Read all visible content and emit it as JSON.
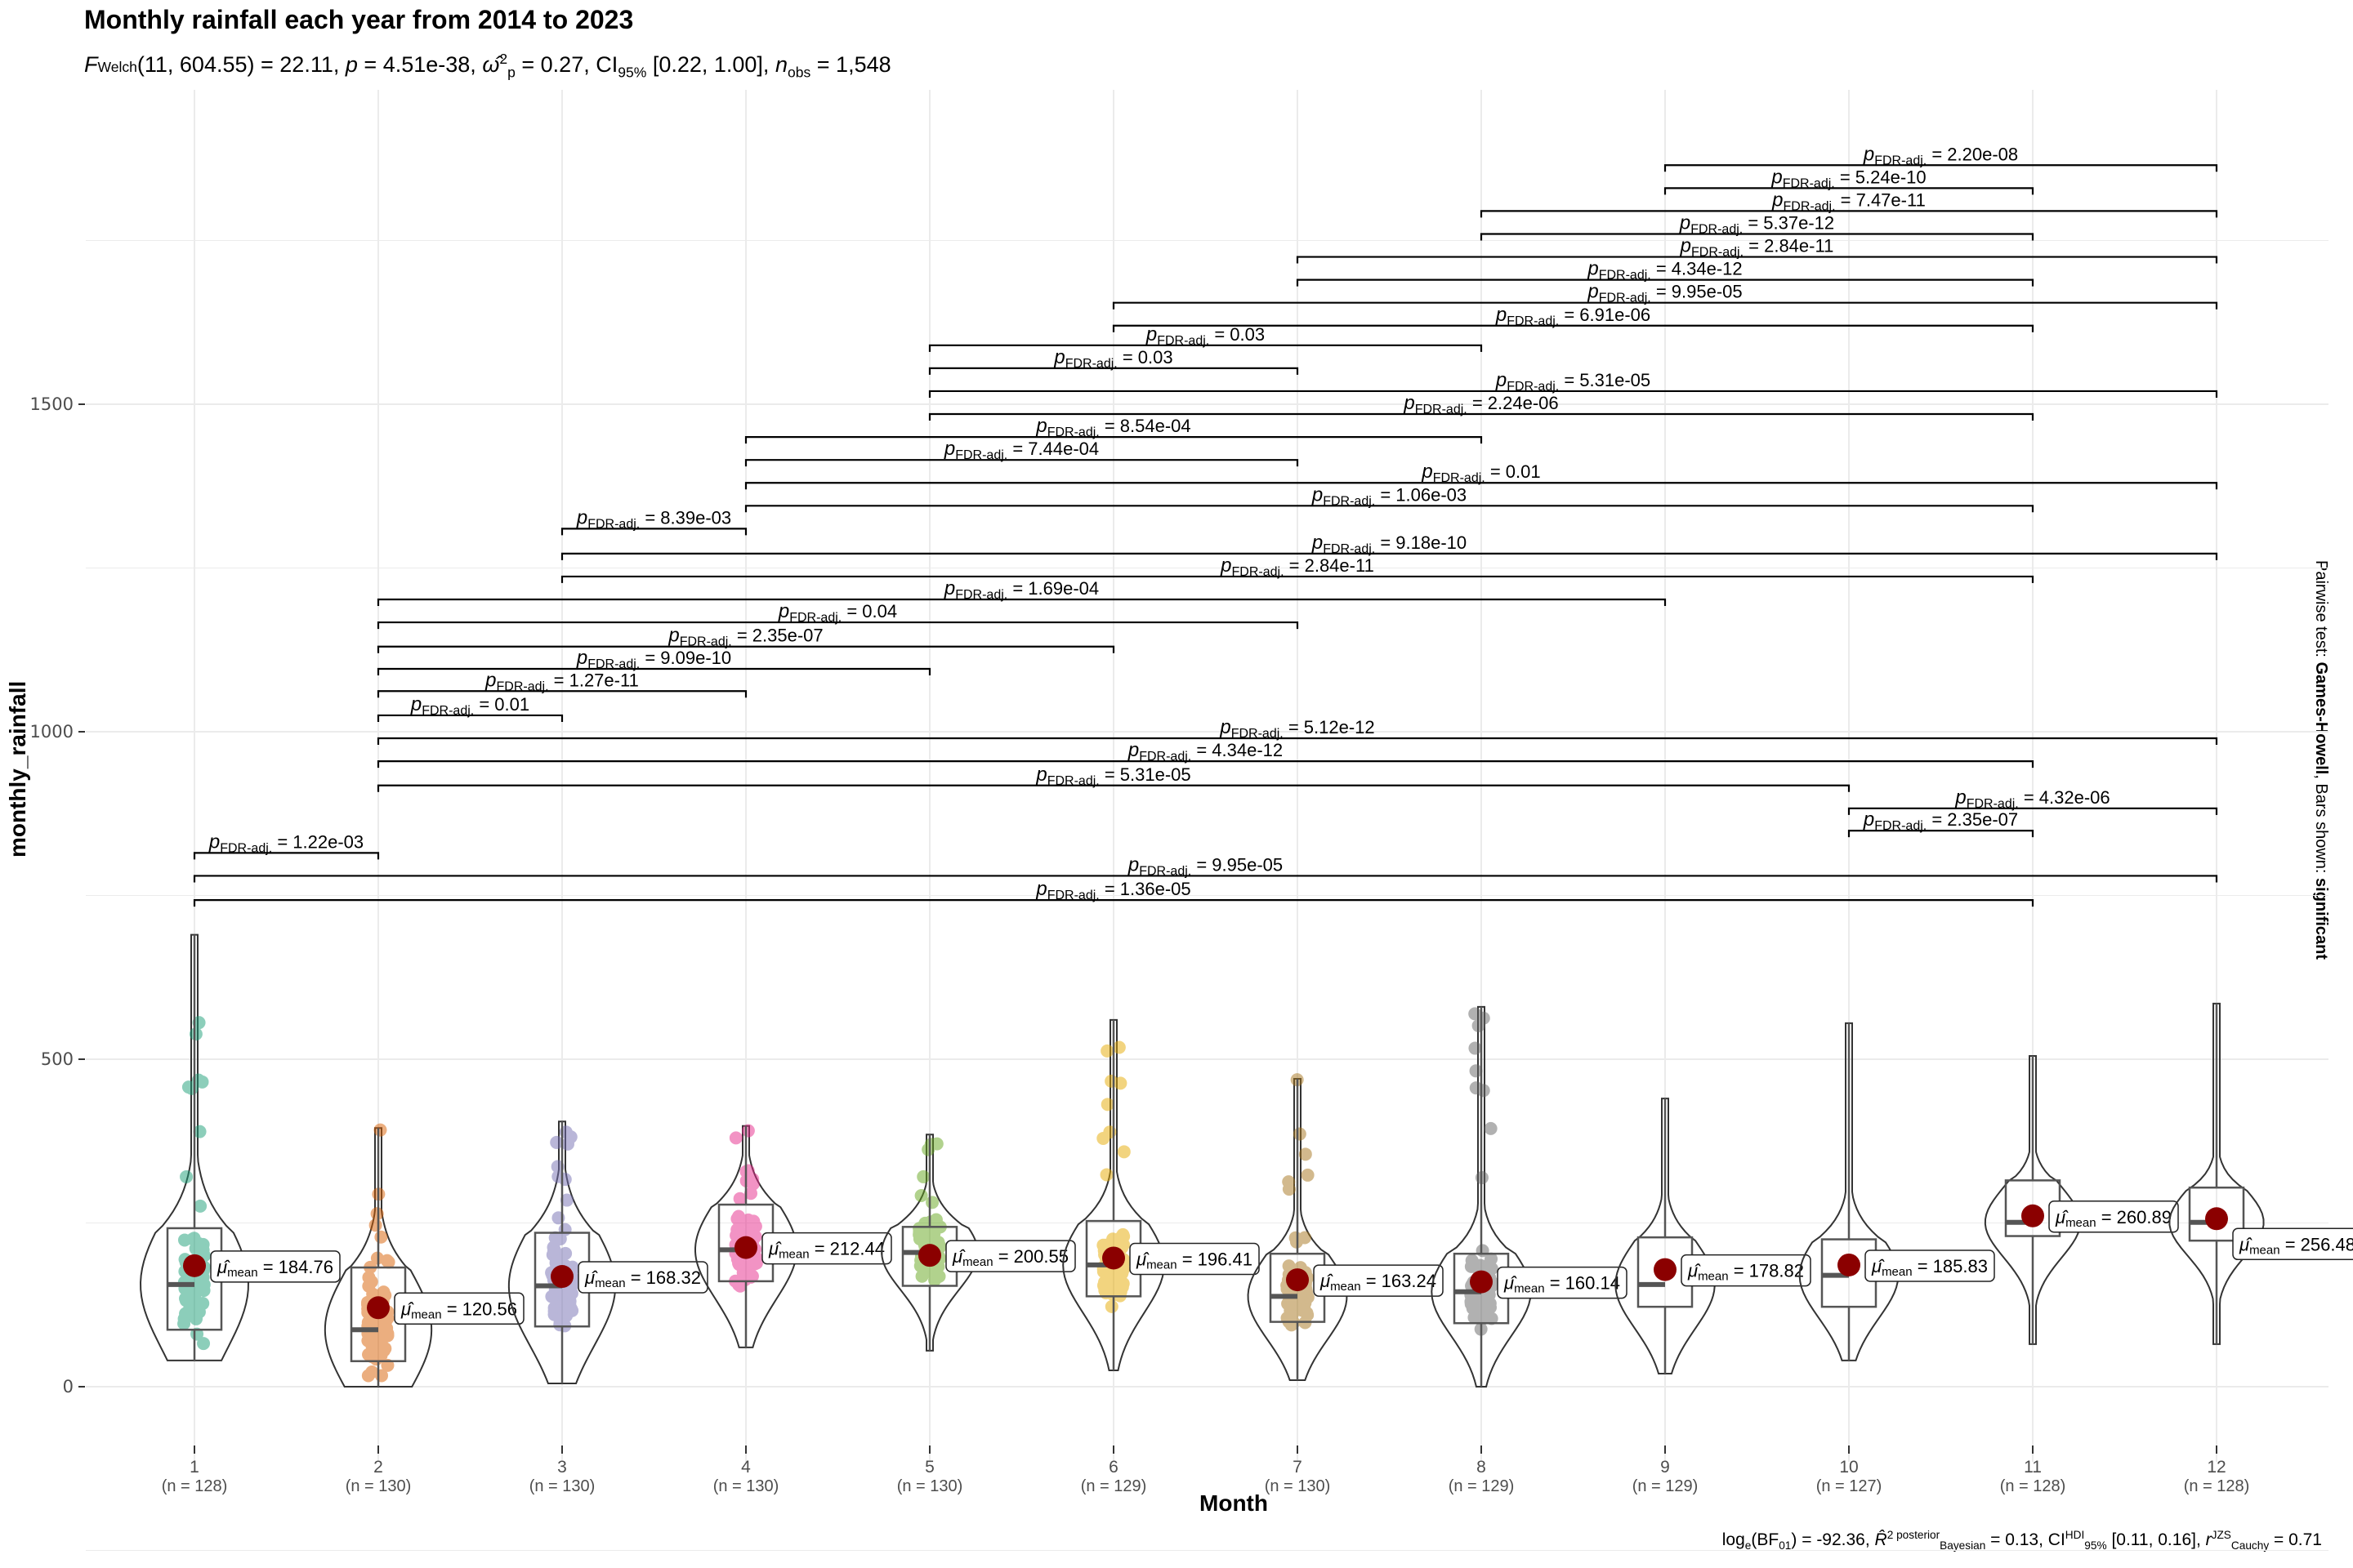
{
  "chart_data": {
    "type": "violin",
    "title": "Monthly rainfall each year from 2014 to 2023",
    "subtitle": "F_Welch(11, 604.55) = 22.11, p = 4.51e-38, ω̂²_p = 0.27, CI95% [0.22, 1.00], n_obs = 1,548",
    "subtitle_parts": {
      "stat": "F",
      "stat_sub": "Welch",
      "df": "(11, 604.55)",
      "stat_value": "= 22.11,",
      "p_label": "p",
      "p_value": "= 4.51e-38,",
      "effect": "ω̂",
      "effect_sup": "2",
      "effect_sub": "p",
      "effect_value": "= 0.27, CI",
      "ci_sub": "95%",
      "ci": "[0.22, 1.00],",
      "n_label": "n",
      "n_sub": "obs",
      "n_value": "= 1,548"
    },
    "caption_parts": {
      "a": "log",
      "a_sub": "e",
      "b": "(BF",
      "b_sub": "01",
      "c": ") = -92.36,",
      "r": "R̂",
      "r_sup": "2 posterior",
      "r_sub": "Bayesian",
      "d": "= 0.13, CI",
      "ci_sup": "HDI",
      "ci_sub": "95%",
      "e": "[0.11, 0.16],",
      "rc": "r",
      "rc_sup": "JZS",
      "rc_sub": "Cauchy",
      "f": "= 0.71"
    },
    "side_caption": {
      "prefix": "Pairwise test: ",
      "test": "Games-Howell",
      "mid": ", Bars shown: ",
      "shown": "significant"
    },
    "xlabel": "Month",
    "ylabel": "monthly_rainfall",
    "ylim": [
      -100,
      1900
    ],
    "yticks": [
      0,
      500,
      1000,
      1500
    ],
    "grid": true,
    "categories": [
      "1",
      "2",
      "3",
      "4",
      "5",
      "6",
      "7",
      "8",
      "9",
      "10",
      "11",
      "12"
    ],
    "n_labels": [
      "(n = 128)",
      "(n = 130)",
      "(n = 130)",
      "(n = 130)",
      "(n = 130)",
      "(n = 129)",
      "(n = 130)",
      "(n = 129)",
      "(n = 129)",
      "(n = 127)",
      "(n = 128)",
      "(n = 128)"
    ],
    "means": [
      184.76,
      120.56,
      168.32,
      212.44,
      200.55,
      196.41,
      163.24,
      160.14,
      178.82,
      185.83,
      260.89,
      256.48
    ],
    "mean_label_prefix": "μ̂",
    "mean_label_sub": "mean",
    "boxes": [
      {
        "min": 40,
        "q1": 87,
        "median": 156,
        "q3": 242,
        "max": 690
      },
      {
        "min": 0,
        "q1": 39,
        "median": 87,
        "q3": 182,
        "max": 395
      },
      {
        "min": 5,
        "q1": 92,
        "median": 154,
        "q3": 235,
        "max": 405
      },
      {
        "min": 60,
        "q1": 161,
        "median": 209,
        "q3": 278,
        "max": 398
      },
      {
        "min": 55,
        "q1": 154,
        "median": 205,
        "q3": 244,
        "max": 385
      },
      {
        "min": 25,
        "q1": 138,
        "median": 186,
        "q3": 253,
        "max": 560
      },
      {
        "min": 10,
        "q1": 99,
        "median": 138,
        "q3": 203,
        "max": 470
      },
      {
        "min": 0,
        "q1": 97,
        "median": 145,
        "q3": 203,
        "max": 580
      },
      {
        "min": 20,
        "q1": 122,
        "median": 156,
        "q3": 228,
        "max": 440
      },
      {
        "min": 40,
        "q1": 122,
        "median": 170,
        "q3": 225,
        "max": 555
      },
      {
        "min": 65,
        "q1": 230,
        "median": 251,
        "q3": 315,
        "max": 505
      },
      {
        "min": 65,
        "q1": 223,
        "median": 251,
        "q3": 304,
        "max": 585
      }
    ],
    "point_colors": [
      "#1B9E77",
      "#D95F02",
      "#7570B3",
      "#E7298A",
      "#66A61E",
      "#E6AB02",
      "#A6761D",
      "#666666",
      null,
      null,
      null,
      null
    ],
    "mean_color": "#8B0000",
    "p_label_prefix": "p",
    "p_label_sub": "FDR-adj.",
    "comparisons": [
      {
        "groups": [
          9,
          12
        ],
        "y": 1865,
        "p": "2.20e-08"
      },
      {
        "groups": [
          9,
          11
        ],
        "y": 1830,
        "p": "5.24e-10"
      },
      {
        "groups": [
          8,
          12
        ],
        "y": 1795,
        "p": "7.47e-11"
      },
      {
        "groups": [
          8,
          11
        ],
        "y": 1760,
        "p": "5.37e-12"
      },
      {
        "groups": [
          7,
          12
        ],
        "y": 1725,
        "p": "2.84e-11"
      },
      {
        "groups": [
          7,
          11
        ],
        "y": 1690,
        "p": "4.34e-12"
      },
      {
        "groups": [
          6,
          12
        ],
        "y": 1655,
        "p": "9.95e-05"
      },
      {
        "groups": [
          6,
          11
        ],
        "y": 1620,
        "p": "6.91e-06"
      },
      {
        "groups": [
          5,
          8
        ],
        "y": 1590,
        "p": "0.03"
      },
      {
        "groups": [
          5,
          7
        ],
        "y": 1555,
        "p": "0.03"
      },
      {
        "groups": [
          5,
          12
        ],
        "y": 1520,
        "p": "5.31e-05"
      },
      {
        "groups": [
          5,
          11
        ],
        "y": 1485,
        "p": "2.24e-06"
      },
      {
        "groups": [
          4,
          8
        ],
        "y": 1450,
        "p": "8.54e-04"
      },
      {
        "groups": [
          4,
          7
        ],
        "y": 1415,
        "p": "7.44e-04"
      },
      {
        "groups": [
          4,
          12
        ],
        "y": 1380,
        "p": "0.01"
      },
      {
        "groups": [
          4,
          11
        ],
        "y": 1345,
        "p": "1.06e-03"
      },
      {
        "groups": [
          3,
          4
        ],
        "y": 1310,
        "p": "8.39e-03"
      },
      {
        "groups": [
          3,
          12
        ],
        "y": 1272,
        "p": "9.18e-10"
      },
      {
        "groups": [
          3,
          11
        ],
        "y": 1237,
        "p": "2.84e-11"
      },
      {
        "groups": [
          2,
          9
        ],
        "y": 1202,
        "p": "1.69e-04"
      },
      {
        "groups": [
          2,
          7
        ],
        "y": 1167,
        "p": "0.04"
      },
      {
        "groups": [
          2,
          6
        ],
        "y": 1130,
        "p": "2.35e-07"
      },
      {
        "groups": [
          2,
          5
        ],
        "y": 1096,
        "p": "9.09e-10"
      },
      {
        "groups": [
          2,
          4
        ],
        "y": 1062,
        "p": "1.27e-11"
      },
      {
        "groups": [
          2,
          3
        ],
        "y": 1025,
        "p": "0.01"
      },
      {
        "groups": [
          2,
          12
        ],
        "y": 990,
        "p": "5.12e-12"
      },
      {
        "groups": [
          2,
          11
        ],
        "y": 955,
        "p": "4.34e-12"
      },
      {
        "groups": [
          2,
          10
        ],
        "y": 918,
        "p": "5.31e-05"
      },
      {
        "groups": [
          10,
          12
        ],
        "y": 883,
        "p": "4.32e-06"
      },
      {
        "groups": [
          10,
          11
        ],
        "y": 849,
        "p": "2.35e-07"
      },
      {
        "groups": [
          1,
          2
        ],
        "y": 815,
        "p": "1.22e-03"
      },
      {
        "groups": [
          1,
          12
        ],
        "y": 780,
        "p": "9.95e-05"
      },
      {
        "groups": [
          1,
          11
        ],
        "y": 743,
        "p": "1.36e-05"
      }
    ]
  }
}
